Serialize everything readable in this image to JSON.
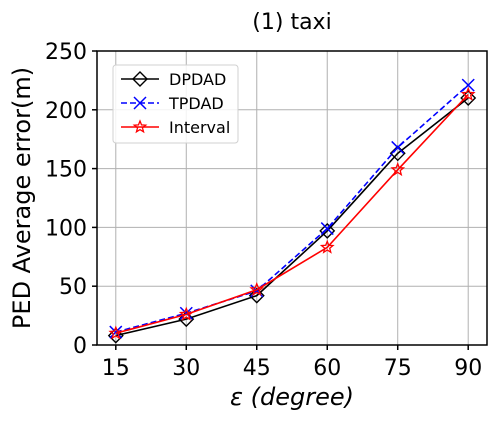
{
  "chart_data": {
    "type": "line",
    "title": "(1) taxi",
    "xlabel": "ε (degree)",
    "ylabel": "PED Average error(m)",
    "x": [
      15,
      30,
      45,
      60,
      75,
      90
    ],
    "x_tick_labels": [
      "15",
      "30",
      "45",
      "60",
      "75",
      "90"
    ],
    "y_tick_labels": [
      "0",
      "50",
      "100",
      "150",
      "200",
      "250"
    ],
    "y_ticks": [
      0,
      50,
      100,
      150,
      200,
      250
    ],
    "xlim": [
      11,
      94
    ],
    "ylim": [
      0,
      250
    ],
    "grid": true,
    "legend_position": "top-left",
    "series": [
      {
        "name": "DPDAD",
        "color": "#000000",
        "linestyle": "solid",
        "marker": "diamond",
        "values": [
          8,
          22,
          42,
          97,
          163,
          210
        ]
      },
      {
        "name": "TPDAD",
        "color": "#0000ff",
        "linestyle": "dashed",
        "marker": "x",
        "values": [
          11,
          27,
          46,
          99,
          168,
          221
        ]
      },
      {
        "name": "Interval",
        "color": "#ff0000",
        "linestyle": "solid",
        "marker": "star",
        "values": [
          10,
          26,
          47,
          83,
          149,
          213
        ]
      }
    ]
  }
}
